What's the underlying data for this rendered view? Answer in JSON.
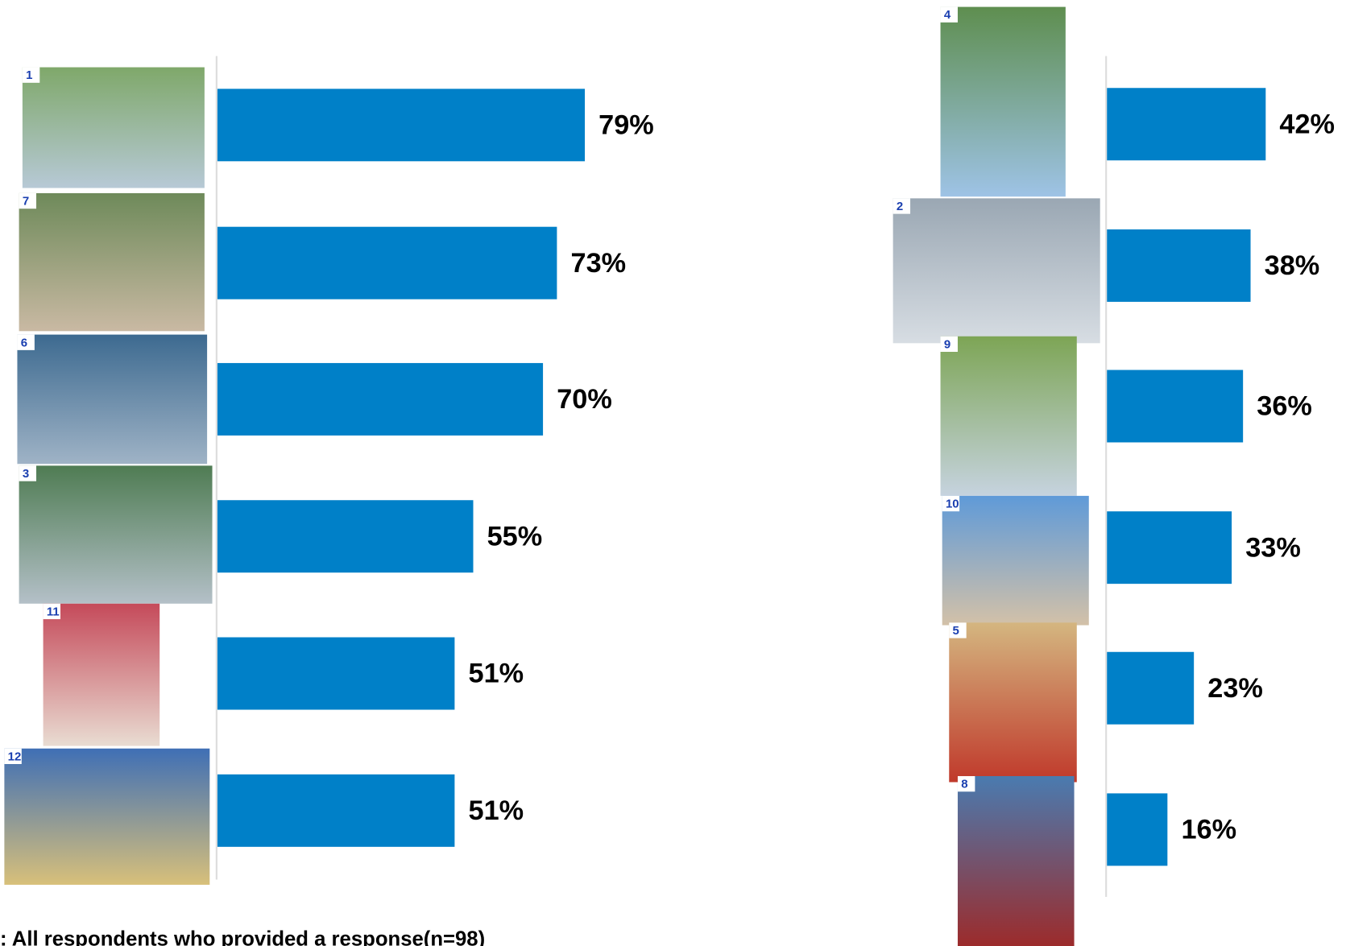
{
  "chart_data": [
    {
      "type": "bar",
      "orientation": "horizontal",
      "color": "#0080c8",
      "categories": [
        "1",
        "7",
        "6",
        "3",
        "11",
        "12"
      ],
      "values": [
        79,
        73,
        70,
        55,
        51,
        51
      ],
      "value_labels": [
        "79%",
        "73%",
        "70%",
        "55%",
        "51%",
        "51%"
      ]
    },
    {
      "type": "bar",
      "orientation": "horizontal",
      "color": "#0080c8",
      "categories": [
        "4",
        "2",
        "9",
        "10",
        "5",
        "8"
      ],
      "values": [
        42,
        38,
        36,
        33,
        23,
        16
      ],
      "value_labels": [
        "42%",
        "38%",
        "36%",
        "33%",
        "23%",
        "16%"
      ]
    }
  ],
  "footnote": ": All respondents who provided a response(n=98)"
}
